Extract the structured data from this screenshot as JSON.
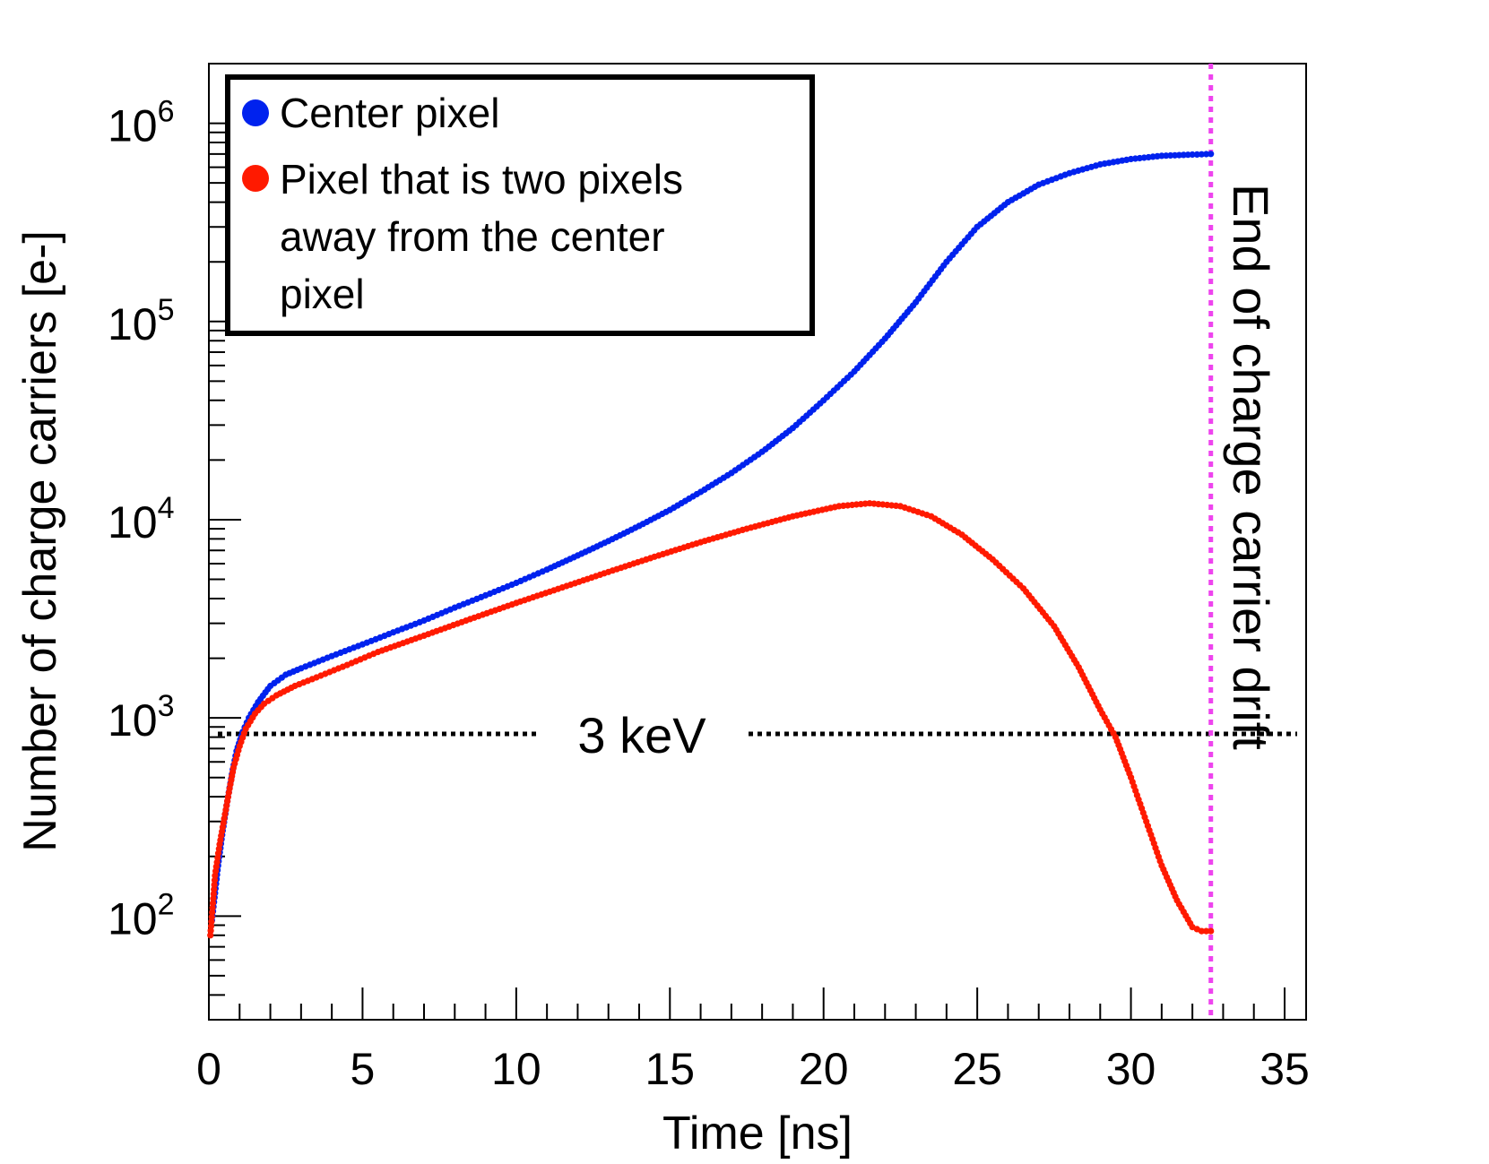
{
  "chart_data": {
    "type": "scatter",
    "title": "",
    "xlabel": "Time [ns]",
    "ylabel": "Number of charge carriers [e-]",
    "xlim": [
      0,
      35.7
    ],
    "ylim": [
      30,
      2000000
    ],
    "yscale": "log",
    "x_ticks": [
      0,
      5,
      10,
      15,
      20,
      25,
      30,
      35
    ],
    "x_tick_labels": [
      "0",
      "5",
      "10",
      "15",
      "20",
      "25",
      "30",
      "35"
    ],
    "y_ticks": [
      100,
      1000,
      10000,
      100000,
      1000000
    ],
    "y_tick_labels": [
      {
        "base": "10",
        "exp": "2"
      },
      {
        "base": "10",
        "exp": "3"
      },
      {
        "base": "10",
        "exp": "4"
      },
      {
        "base": "10",
        "exp": "5"
      },
      {
        "base": "10",
        "exp": "6"
      }
    ],
    "series": [
      {
        "name": "Center pixel",
        "color": "#0022ee",
        "points": [
          [
            0.1,
            95
          ],
          [
            0.3,
            180
          ],
          [
            0.45,
            270
          ],
          [
            0.6,
            380
          ],
          [
            0.75,
            520
          ],
          [
            0.9,
            680
          ],
          [
            1.1,
            850
          ],
          [
            1.3,
            1000
          ],
          [
            1.6,
            1200
          ],
          [
            2.0,
            1450
          ],
          [
            2.5,
            1650
          ],
          [
            3.0,
            1780
          ],
          [
            4.0,
            2050
          ],
          [
            5.0,
            2350
          ],
          [
            6.0,
            2700
          ],
          [
            7.0,
            3100
          ],
          [
            8.0,
            3600
          ],
          [
            9.0,
            4150
          ],
          [
            10.0,
            4800
          ],
          [
            11.0,
            5600
          ],
          [
            12.0,
            6600
          ],
          [
            13.0,
            7800
          ],
          [
            14.0,
            9300
          ],
          [
            15.0,
            11200
          ],
          [
            16.0,
            13800
          ],
          [
            17.0,
            17200
          ],
          [
            18.0,
            22000
          ],
          [
            19.0,
            29000
          ],
          [
            20.0,
            40000
          ],
          [
            21.0,
            56000
          ],
          [
            22.0,
            82000
          ],
          [
            23.0,
            125000
          ],
          [
            24.0,
            200000
          ],
          [
            25.0,
            300000
          ],
          [
            26.0,
            400000
          ],
          [
            27.0,
            490000
          ],
          [
            28.0,
            560000
          ],
          [
            29.0,
            620000
          ],
          [
            30.0,
            660000
          ],
          [
            31.0,
            685000
          ],
          [
            32.0,
            695000
          ],
          [
            32.6,
            700000
          ]
        ]
      },
      {
        "name": "Pixel that is two pixels away from the center pixel",
        "color": "#ff1a00",
        "points": [
          [
            0.05,
            80
          ],
          [
            0.2,
            160
          ],
          [
            0.35,
            230
          ],
          [
            0.5,
            310
          ],
          [
            0.65,
            420
          ],
          [
            0.8,
            560
          ],
          [
            1.0,
            720
          ],
          [
            1.2,
            880
          ],
          [
            1.5,
            1050
          ],
          [
            1.8,
            1180
          ],
          [
            2.2,
            1300
          ],
          [
            2.8,
            1450
          ],
          [
            3.5,
            1600
          ],
          [
            4.5,
            1850
          ],
          [
            5.5,
            2150
          ],
          [
            7.0,
            2600
          ],
          [
            8.5,
            3150
          ],
          [
            10.0,
            3800
          ],
          [
            11.5,
            4550
          ],
          [
            13.0,
            5450
          ],
          [
            14.5,
            6500
          ],
          [
            16.0,
            7700
          ],
          [
            17.5,
            9000
          ],
          [
            19.0,
            10400
          ],
          [
            20.5,
            11700
          ],
          [
            21.5,
            12100
          ],
          [
            22.5,
            11700
          ],
          [
            23.5,
            10400
          ],
          [
            24.5,
            8400
          ],
          [
            25.5,
            6300
          ],
          [
            26.5,
            4500
          ],
          [
            27.5,
            2900
          ],
          [
            28.3,
            1800
          ],
          [
            29.0,
            1100
          ],
          [
            29.5,
            800
          ],
          [
            30.0,
            500
          ],
          [
            30.5,
            300
          ],
          [
            31.0,
            180
          ],
          [
            31.5,
            120
          ],
          [
            32.0,
            88
          ],
          [
            32.3,
            84
          ],
          [
            32.6,
            84
          ]
        ]
      }
    ],
    "reference_lines": [
      {
        "orientation": "horizontal",
        "value": 830,
        "label": "3 keV",
        "style": "dotted",
        "color": "#000000"
      },
      {
        "orientation": "vertical",
        "value": 32.6,
        "label": "End of charge carrier drift",
        "style": "dotted",
        "color": "#ee44ee"
      }
    ],
    "legend": {
      "position": "top-left",
      "entries": [
        {
          "label": "Center pixel",
          "color": "#0022ee"
        },
        {
          "label_lines": [
            "Pixel that is two pixels",
            "away from the center",
            "pixel"
          ],
          "color": "#ff1a00"
        }
      ]
    }
  }
}
